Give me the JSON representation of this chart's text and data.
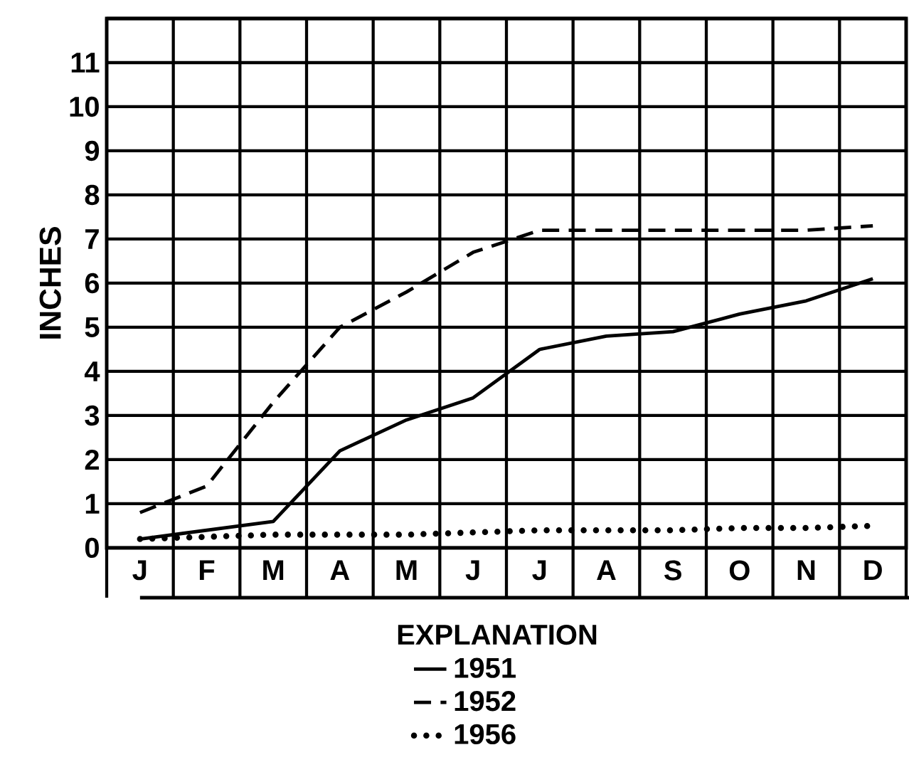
{
  "chart_data": {
    "type": "line",
    "ylabel": "INCHES",
    "legend_title": "EXPLANATION",
    "categories": [
      "J",
      "F",
      "M",
      "A",
      "M",
      "J",
      "J",
      "A",
      "S",
      "O",
      "N",
      "D"
    ],
    "ylim": [
      0,
      12
    ],
    "yticks": [
      0,
      1,
      2,
      3,
      4,
      5,
      6,
      7,
      8,
      9,
      10,
      11,
      {
        "value": 12,
        "label": null
      }
    ],
    "grid": true,
    "legend": "bottom",
    "series": [
      {
        "name": "1951",
        "color": "#000000",
        "line_style": "solid",
        "values": [
          0.2,
          0.4,
          0.6,
          2.2,
          2.9,
          3.4,
          4.5,
          4.8,
          4.9,
          5.3,
          5.6,
          6.1
        ]
      },
      {
        "name": "1952",
        "color": "#000000",
        "line_style": "dashed",
        "values": [
          0.8,
          1.4,
          3.3,
          5.0,
          5.8,
          6.7,
          7.2,
          7.2,
          7.2,
          7.2,
          7.2,
          7.3
        ]
      },
      {
        "name": "1956",
        "color": "#000000",
        "line_style": "dotted",
        "values": [
          0.2,
          0.25,
          0.3,
          0.3,
          0.3,
          0.35,
          0.4,
          0.4,
          0.4,
          0.45,
          0.45,
          0.5
        ]
      }
    ]
  }
}
